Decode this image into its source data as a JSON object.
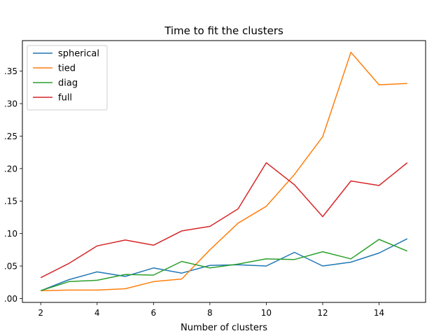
{
  "chart_data": {
    "type": "line",
    "title": "Time to fit the clusters",
    "xlabel": "Number of clusters",
    "ylabel": "",
    "xlim": [
      1.35,
      15.65
    ],
    "ylim": [
      -0.006,
      0.397
    ],
    "x": [
      2,
      3,
      4,
      5,
      6,
      7,
      8,
      9,
      10,
      11,
      12,
      13,
      14,
      15
    ],
    "xticks": [
      2,
      4,
      6,
      8,
      10,
      12,
      14
    ],
    "yticks": [
      0.0,
      0.05,
      0.1,
      0.15,
      0.2,
      0.25,
      0.3,
      0.35
    ],
    "ytick_labels": [
      ".00",
      ".05",
      ".10",
      ".15",
      ".20",
      ".25",
      ".30",
      ".35"
    ],
    "grid": false,
    "legend_position": "top-left",
    "series": [
      {
        "name": "spherical",
        "color": "#1f77b4",
        "values": [
          0.012,
          0.029,
          0.041,
          0.034,
          0.047,
          0.039,
          0.051,
          0.052,
          0.05,
          0.071,
          0.05,
          0.056,
          0.07,
          0.092
        ]
      },
      {
        "name": "tied",
        "color": "#ff7f0e",
        "values": [
          0.012,
          0.013,
          0.013,
          0.015,
          0.026,
          0.03,
          0.075,
          0.116,
          0.142,
          0.191,
          0.249,
          0.379,
          0.329,
          0.331
        ]
      },
      {
        "name": "diag",
        "color": "#2ca02c",
        "values": [
          0.012,
          0.026,
          0.028,
          0.037,
          0.036,
          0.057,
          0.047,
          0.053,
          0.061,
          0.06,
          0.072,
          0.061,
          0.091,
          0.073
        ]
      },
      {
        "name": "full",
        "color": "#d62728",
        "values": [
          0.032,
          0.054,
          0.081,
          0.09,
          0.082,
          0.104,
          0.111,
          0.138,
          0.209,
          0.175,
          0.126,
          0.181,
          0.174,
          0.209
        ]
      }
    ]
  }
}
